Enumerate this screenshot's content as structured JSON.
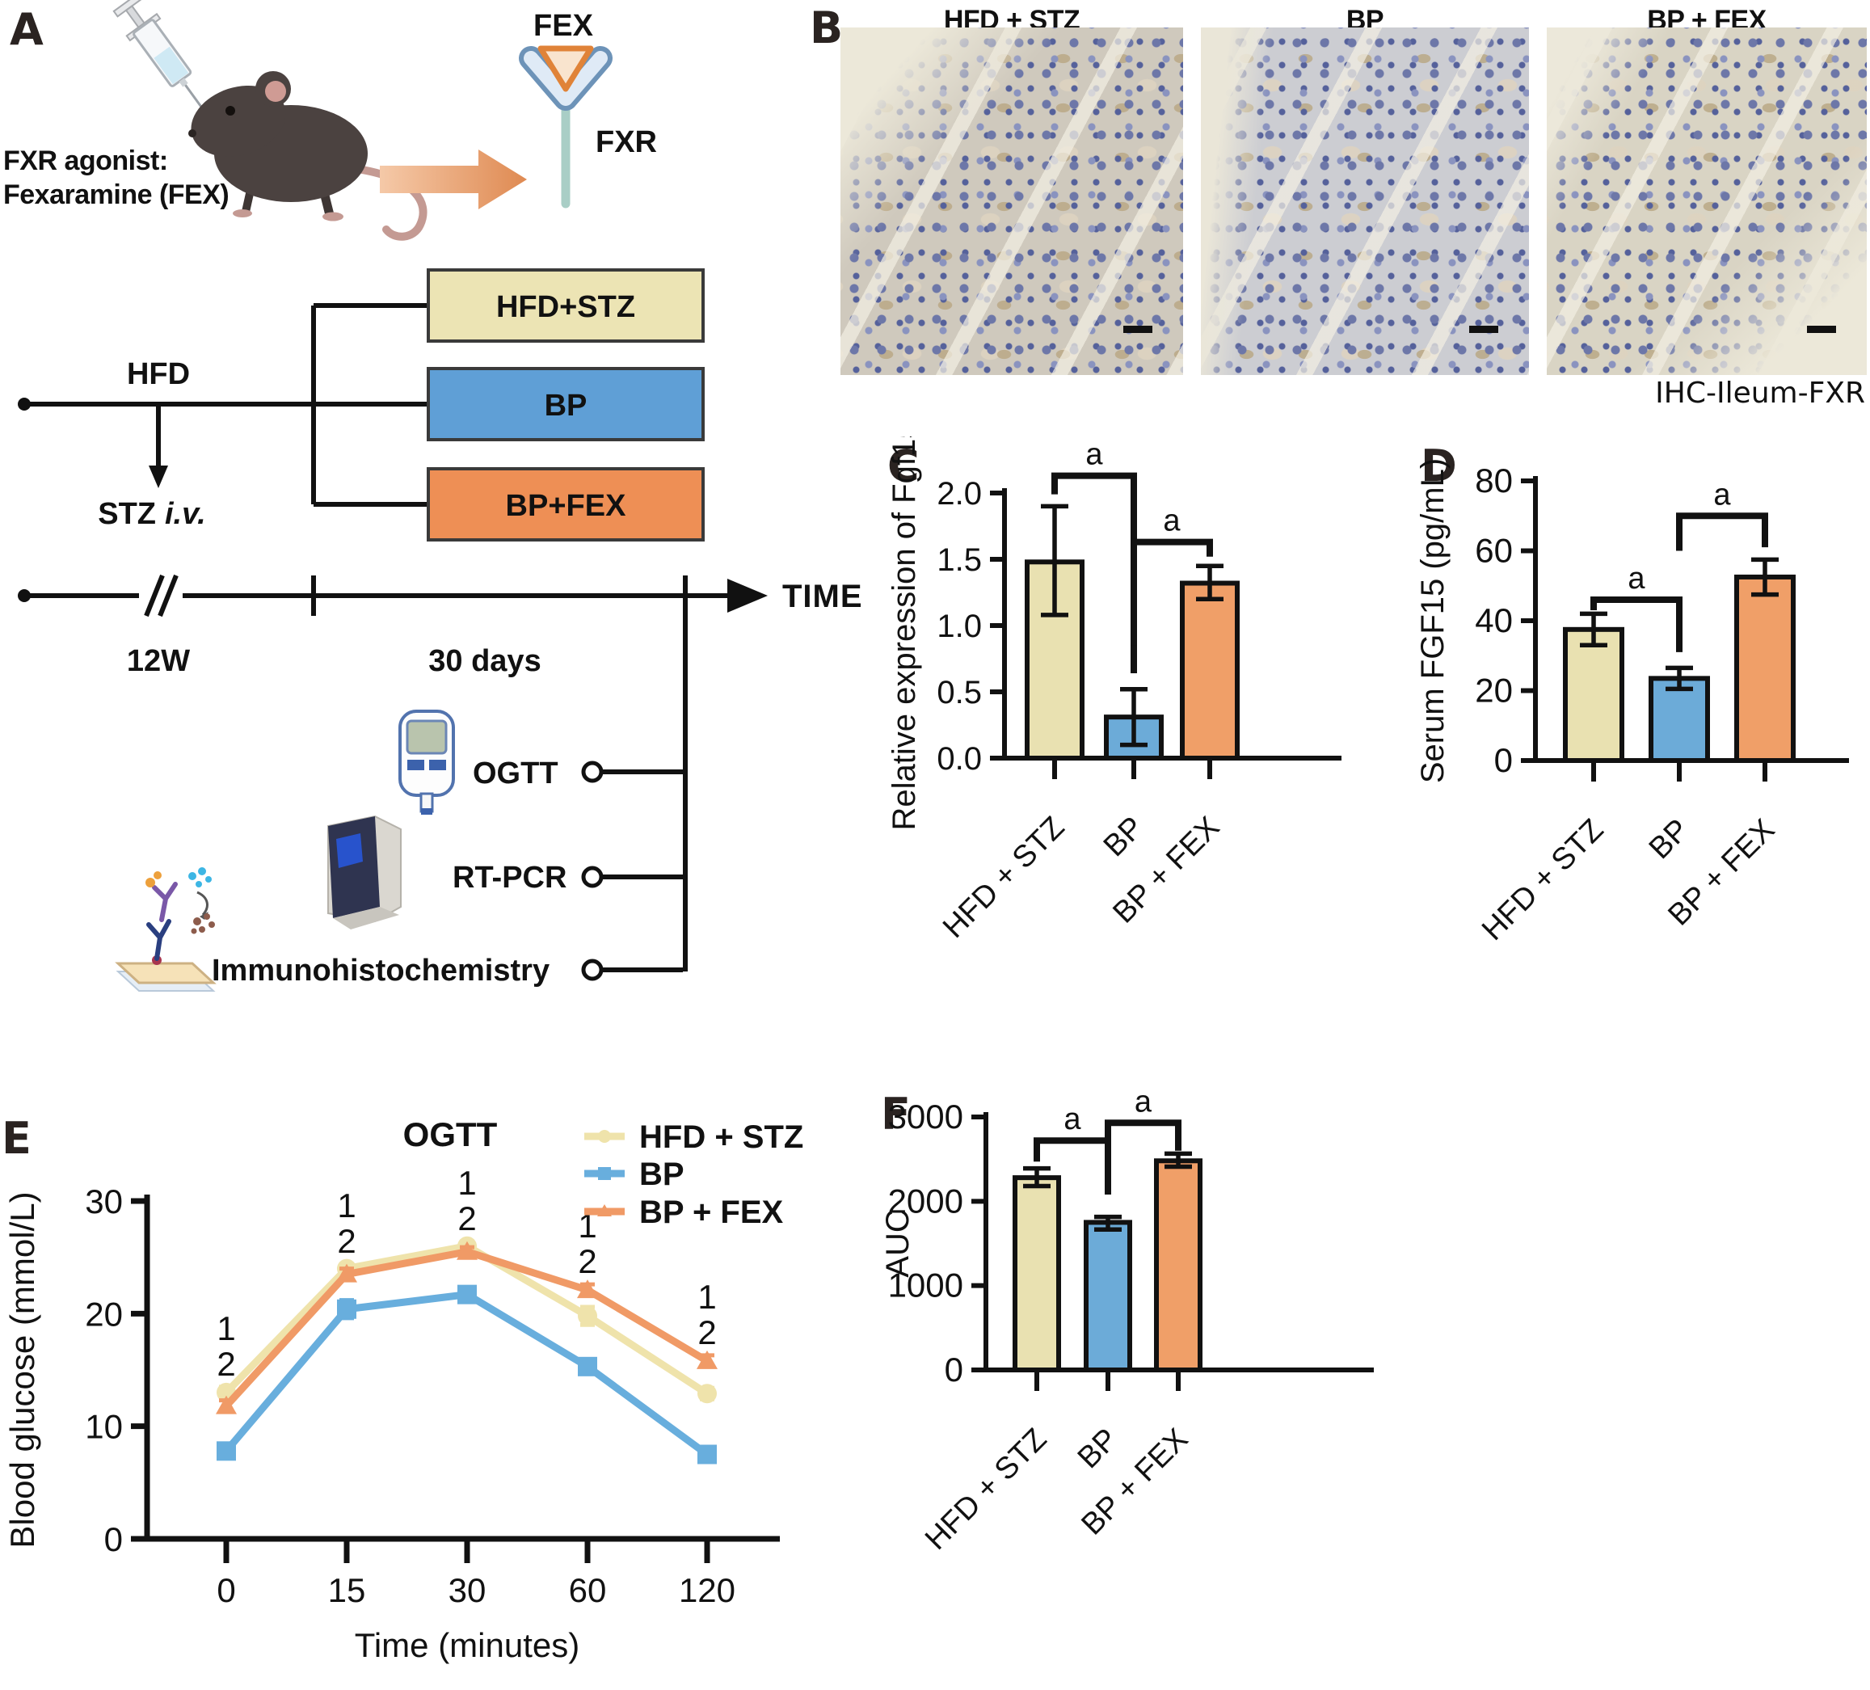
{
  "panels": {
    "A": {
      "label": "A",
      "agonist_line1": "FXR agonist:",
      "agonist_line2": "Fexaramine (FEX)",
      "fex_label": "FEX",
      "fxr_label": "FXR",
      "hfd_label": "HFD",
      "stz_label": "STZ",
      "stz_iv_label": "i.v.",
      "group_boxes": [
        {
          "label": "HFD+STZ",
          "color": "#ece4b4"
        },
        {
          "label": "BP",
          "color": "#5f9fd6"
        },
        {
          "label": "BP+FEX",
          "color": "#ee8f55"
        }
      ],
      "timeline": {
        "week_label": "12W",
        "days_label": "30 days",
        "time_label": "TIME"
      },
      "assays": [
        {
          "label": "OGTT",
          "icon": "glucometer-icon"
        },
        {
          "label": "RT-PCR",
          "icon": "pcr-machine-icon"
        },
        {
          "label": "Immunohistochemistry",
          "icon": "antibody-slide-icon"
        }
      ]
    },
    "B": {
      "label": "B",
      "images": [
        {
          "title": "HFD + STZ"
        },
        {
          "title": "BP"
        },
        {
          "title": "BP + FEX"
        }
      ],
      "caption": "IHC-Ileum-FXR"
    },
    "C": {
      "label": "C"
    },
    "D": {
      "label": "D"
    },
    "E": {
      "label": "E"
    },
    "F": {
      "label": "F"
    }
  },
  "colors": {
    "cream": "#e9e1b1",
    "blue": "#6cabd8",
    "orange": "#f09f68",
    "axis": "#111111"
  },
  "chart_data": [
    {
      "id": "C",
      "type": "bar",
      "ylabel": "Relative expression of Fgf15",
      "categories": [
        "HFD + STZ",
        "BP",
        "BP + FEX"
      ],
      "values": [
        1.48,
        0.31,
        1.32
      ],
      "err_low": [
        1.08,
        0.1,
        1.2
      ],
      "err_high": [
        1.9,
        0.52,
        1.45
      ],
      "ylim": [
        0,
        2.0
      ],
      "yticks": [
        0,
        0.5,
        1.0,
        1.5,
        2.0
      ],
      "ytick_labels": [
        "0.0",
        "0.5",
        "1.0",
        "1.5",
        "2.0"
      ],
      "bar_colors": [
        "#e9e1b1",
        "#6cabd8",
        "#f09f68"
      ],
      "grid": false,
      "significance": [
        {
          "from": 0,
          "to": 1,
          "label": "a",
          "bar_y": 2.13,
          "leg_from": 1.99,
          "leg_to": 0.64
        },
        {
          "from": 1,
          "to": 2,
          "label": "a",
          "bar_y": 1.63,
          "leg_from": 0.85,
          "leg_to": 1.52
        }
      ]
    },
    {
      "id": "D",
      "type": "bar",
      "ylabel": "Serum FGF15 (pg/mL)",
      "categories": [
        "HFD + STZ",
        "BP",
        "BP + FEX"
      ],
      "values": [
        37.5,
        23.5,
        52.5
      ],
      "err_low": [
        33,
        20.5,
        47.5
      ],
      "err_high": [
        42,
        26.5,
        57.5
      ],
      "ylim": [
        0,
        80
      ],
      "yticks": [
        0,
        20,
        40,
        60,
        80
      ],
      "ytick_labels": [
        "0",
        "20",
        "40",
        "60",
        "80"
      ],
      "bar_colors": [
        "#e9e1b1",
        "#6cabd8",
        "#f09f68"
      ],
      "grid": false,
      "significance": [
        {
          "from": 0,
          "to": 1,
          "label": "a",
          "bar_y": 46,
          "leg_from": 43,
          "leg_to": 31
        },
        {
          "from": 1,
          "to": 2,
          "label": "a",
          "bar_y": 70,
          "leg_from": 60,
          "leg_to": 61
        }
      ]
    },
    {
      "id": "E",
      "type": "line",
      "title": "OGTT",
      "xlabel": "Time (minutes)",
      "ylabel": "Blood glucose (mmol/L)",
      "x_labels": [
        "0",
        "15",
        "30",
        "60",
        "120"
      ],
      "ylim": [
        0,
        30
      ],
      "yticks": [
        0,
        10,
        20,
        30
      ],
      "ytick_labels": [
        "0",
        "10",
        "20",
        "30"
      ],
      "legend_position": "top-right",
      "grid": false,
      "series": [
        {
          "name": "HFD + STZ",
          "color": "#efe3ab",
          "marker": "circle",
          "values": [
            13.0,
            24.0,
            26.0,
            19.8,
            12.9
          ],
          "err": [
            0.5,
            0.4,
            0.4,
            0.8,
            0.5
          ]
        },
        {
          "name": "BP",
          "color": "#68aedd",
          "marker": "square",
          "values": [
            7.8,
            20.4,
            21.7,
            15.3,
            7.5
          ],
          "err": [
            0.5,
            0.8,
            0.5,
            0.6,
            0.4
          ]
        },
        {
          "name": "BP + FEX",
          "color": "#f09a66",
          "marker": "triangle",
          "values": [
            11.8,
            23.5,
            25.5,
            22.1,
            15.8
          ],
          "err": [
            0.5,
            0.5,
            0.4,
            0.5,
            0.5
          ]
        }
      ],
      "point_annotations": [
        [
          "1",
          "2"
        ],
        [
          "1",
          "2"
        ],
        [
          "1",
          "2"
        ],
        [
          "1",
          "2"
        ],
        [
          "1",
          "2"
        ]
      ]
    },
    {
      "id": "F",
      "type": "bar",
      "ylabel": "AUC",
      "categories": [
        "HFD + STZ",
        "BP",
        "BP + FEX"
      ],
      "values": [
        2280,
        1750,
        2480
      ],
      "err_low": [
        2180,
        1665,
        2410
      ],
      "err_high": [
        2390,
        1815,
        2565
      ],
      "ylim": [
        0,
        3000
      ],
      "yticks": [
        0,
        1000,
        2000,
        3000
      ],
      "ytick_labels": [
        "0",
        "1000",
        "2000",
        "3000"
      ],
      "bar_colors": [
        "#e9e1b1",
        "#6cabd8",
        "#f09f68"
      ],
      "grid": false,
      "significance": [
        {
          "from": 0,
          "to": 1,
          "label": "a",
          "bar_y": 2720,
          "leg_from": 2470,
          "leg_to": 2080
        },
        {
          "from": 1,
          "to": 2,
          "label": "a",
          "bar_y": 2930,
          "leg_from": 2080,
          "leg_to": 2600
        }
      ]
    }
  ]
}
